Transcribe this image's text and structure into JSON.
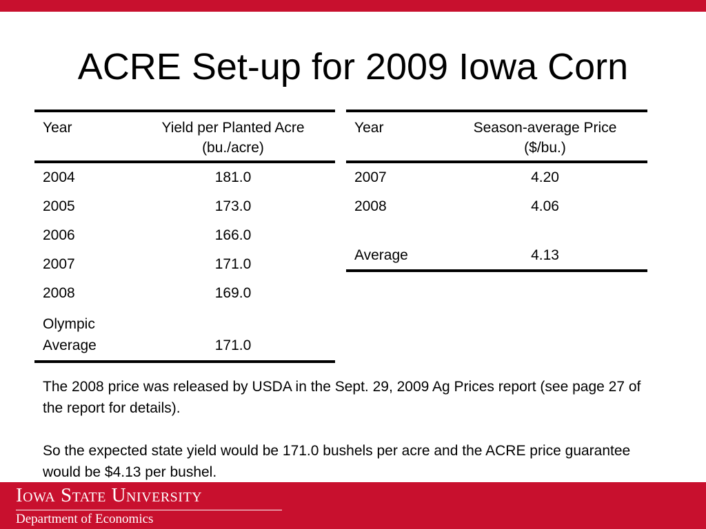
{
  "slide": {
    "title": "ACRE Set-up for 2009 Iowa Corn",
    "accent_color": "#c8102e"
  },
  "yield_table": {
    "headers": [
      "Year",
      "Yield per Planted Acre",
      "(bu./acre)"
    ],
    "rows": [
      {
        "year": "2004",
        "value": "181.0"
      },
      {
        "year": "2005",
        "value": "173.0"
      },
      {
        "year": "2006",
        "value": "166.0"
      },
      {
        "year": "2007",
        "value": "171.0"
      },
      {
        "year": "2008",
        "value": "169.0"
      }
    ],
    "summary": {
      "label_line1": "Olympic",
      "label_line2": "Average",
      "value": "171.0"
    }
  },
  "price_table": {
    "headers": [
      "Year",
      "Season-average Price",
      "($/bu.)"
    ],
    "rows": [
      {
        "year": "2007",
        "value": "4.20"
      },
      {
        "year": "2008",
        "value": "4.06"
      }
    ],
    "summary": {
      "label": "Average",
      "value": "4.13"
    }
  },
  "notes": [
    "The 2008 price was released by USDA in the Sept. 29, 2009 Ag Prices report (see page 27 of the report for details).",
    "So the expected state yield would be 171.0 bushels per acre and the ACRE price guarantee would be $4.13 per bushel."
  ],
  "footer": {
    "university": "Iowa State University",
    "department": "Department of Economics"
  }
}
